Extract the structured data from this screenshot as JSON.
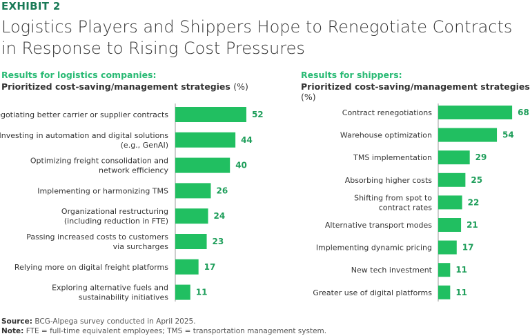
{
  "exhibit": "EXHIBIT 2",
  "title": "Logistics Players and Shippers Hope to Renegotiate Contracts in Response to Rising Cost Pressures",
  "source_label": "Source:",
  "source_text": "BCG-Alpega survey conducted in April 2025.",
  "note_label": "Note:",
  "note_text": "FTE = full-time equivalent employees; TMS = transportation management system.",
  "colors": {
    "bar": "#21BF61",
    "value": "#1E9E5A",
    "exhibit": "#197A56",
    "subtitle": "#29BA74"
  },
  "chart_data": [
    {
      "type": "bar",
      "orientation": "horizontal",
      "subtitle": "Results for logistics companies:",
      "title": "Prioritized cost-saving/management strategies",
      "unit": "(%)",
      "categories": [
        [
          "Negotiating better carrier or supplier contracts"
        ],
        [
          "Investing in automation and digital solutions",
          "(e.g., GenAI)"
        ],
        [
          "Optimizing freight consolidation and",
          "network efficiency"
        ],
        [
          "Implementing or harmonizing TMS"
        ],
        [
          "Organizational restructuring",
          "(including reduction in FTE)"
        ],
        [
          "Passing increased costs to customers",
          "via surcharges"
        ],
        [
          "Relying more on digital freight platforms"
        ],
        [
          "Exploring alternative fuels and",
          "sustainability initiatives"
        ]
      ],
      "values": [
        52,
        44,
        40,
        26,
        24,
        23,
        17,
        11
      ]
    },
    {
      "type": "bar",
      "orientation": "horizontal",
      "subtitle": "Results for shippers:",
      "title": "Prioritized cost-saving/management strategies",
      "unit": "(%)",
      "categories": [
        [
          "Contract renegotiations"
        ],
        [
          "Warehouse optimization"
        ],
        [
          "TMS implementation"
        ],
        [
          "Absorbing higher costs"
        ],
        [
          "Shifting from spot to",
          "contract rates"
        ],
        [
          "Alternative transport modes"
        ],
        [
          "Implementing dynamic pricing"
        ],
        [
          "New tech investment"
        ],
        [
          "Greater use of digital platforms"
        ]
      ],
      "values": [
        68,
        54,
        29,
        25,
        22,
        21,
        17,
        11,
        11
      ]
    }
  ]
}
